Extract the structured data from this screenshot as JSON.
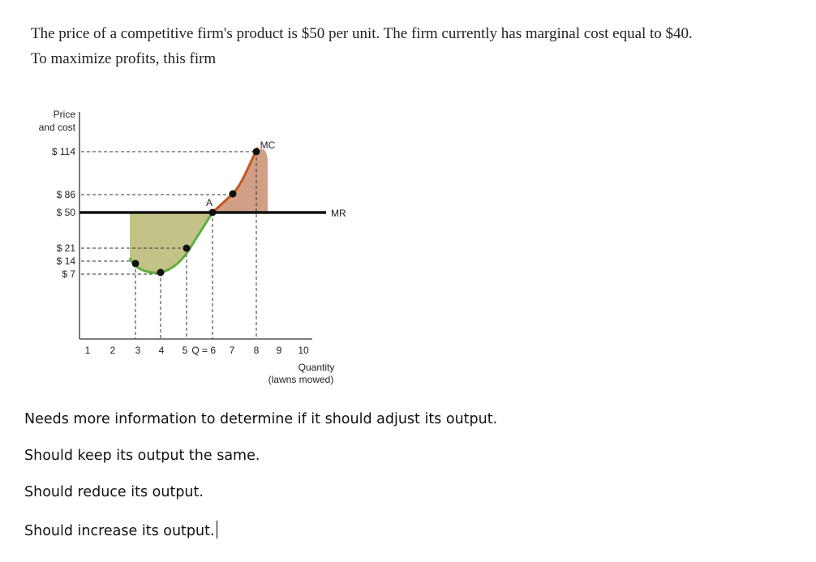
{
  "question": {
    "lines": [
      "The price of a competitive firm's product is $50 per unit. The firm currently has marginal cost equal to $40.",
      "To maximize profits, this firm"
    ]
  },
  "figure": {
    "y_axis_label": [
      "Price",
      "and cost"
    ],
    "y_ticks": [
      "$ 114",
      "$ 86",
      "$ 50",
      "$ 21",
      "$ 14",
      "$ 7"
    ],
    "x_ticks": [
      "1",
      "2",
      "3",
      "4",
      "5",
      "Q = 6",
      "7",
      "8",
      "9",
      "10"
    ],
    "point_label": "A",
    "curve_labels": {
      "mc": "MC",
      "mr": "MR"
    },
    "x_axis_label": [
      "Quantity",
      "(lawns mowed)"
    ]
  },
  "options": [
    "Needs more information to determine if it should adjust its output.",
    "Should keep its output the same.",
    "Should reduce its output.",
    "Should increase its output."
  ]
}
